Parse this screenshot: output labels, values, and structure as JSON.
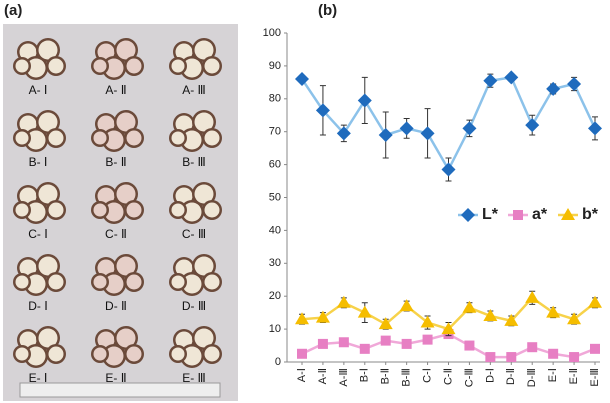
{
  "panel_a": {
    "label": "(a)",
    "sample_labels": [
      "A- Ⅰ",
      "A- Ⅱ",
      "A- Ⅲ",
      "B- Ⅰ",
      "B- Ⅱ",
      "B- Ⅲ",
      "C- Ⅰ",
      "C- Ⅱ",
      "C- Ⅲ",
      "D- Ⅰ",
      "D- Ⅱ",
      "D- Ⅲ",
      "E- Ⅰ",
      "E- Ⅱ",
      "E- Ⅲ"
    ]
  },
  "chart_data": {
    "type": "line",
    "title": "(b)",
    "categories": [
      "A-Ⅰ",
      "A-Ⅱ",
      "A-Ⅲ",
      "B-Ⅰ",
      "B-Ⅱ",
      "B-Ⅲ",
      "C-Ⅰ",
      "C-Ⅱ",
      "C-Ⅲ",
      "D-Ⅰ",
      "D-Ⅱ",
      "D-Ⅲ",
      "E-Ⅰ",
      "E-Ⅱ",
      "E-Ⅲ"
    ],
    "series": [
      {
        "name": "L*",
        "color": "#1f6bbd",
        "line_color": "#8cc2ea",
        "marker": "diamond",
        "values": [
          86,
          76.5,
          69.5,
          79.5,
          69,
          71,
          69.5,
          58.5,
          71,
          85.5,
          86.5,
          72,
          83,
          84.5,
          71
        ],
        "errors": [
          1,
          7.5,
          2.5,
          7,
          7,
          3,
          7.5,
          3.5,
          2.5,
          2,
          1,
          3,
          1.5,
          2,
          3.5
        ]
      },
      {
        "name": "a*",
        "color": "#e77fc3",
        "line_color": "#f0a8d8",
        "marker": "square",
        "values": [
          2.5,
          5.5,
          6,
          4,
          6.5,
          5.5,
          6.8,
          8.5,
          5,
          1.5,
          1.5,
          4.5,
          2.5,
          1.5,
          4
        ],
        "errors": [
          0.8,
          1,
          1,
          0.8,
          1,
          1,
          1.2,
          1,
          1,
          0.5,
          0.5,
          1,
          0.8,
          0.5,
          1
        ]
      },
      {
        "name": "b*",
        "color": "#f5bd00",
        "line_color": "#f7d24a",
        "marker": "triangle",
        "values": [
          13,
          13.5,
          18,
          15,
          11.5,
          17,
          12,
          10,
          16.5,
          14,
          12.5,
          19.5,
          15,
          13,
          18
        ],
        "errors": [
          1.5,
          1.5,
          1.5,
          3,
          1.5,
          1.5,
          2,
          2,
          1.5,
          1.5,
          1.5,
          2,
          1.5,
          1.5,
          1.5
        ]
      }
    ],
    "ylim": [
      0,
      100
    ],
    "yticks": [
      0,
      10,
      20,
      30,
      40,
      50,
      60,
      70,
      80,
      90,
      100
    ],
    "grid": false,
    "legend": "right"
  }
}
